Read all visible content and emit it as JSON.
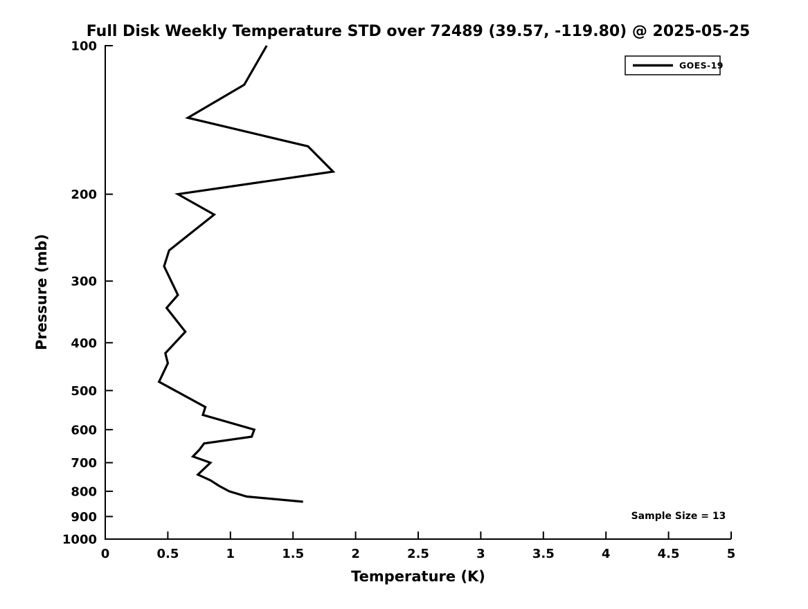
{
  "figure": {
    "background_color": "#ffffff",
    "text_color": "#000000",
    "line_color": "#000000"
  },
  "chart_data": {
    "type": "line",
    "title": "Full Disk Weekly Temperature STD over 72489 (39.57, -119.80) @ 2025-05-25",
    "xlabel": "Temperature (K)",
    "ylabel": "Pressure (mb)",
    "xlim": [
      0,
      5
    ],
    "ylim": [
      100,
      1000
    ],
    "xscale": "linear",
    "yscale": "log",
    "y_axis_inverted_downward": true,
    "grid": false,
    "xticks": [
      0,
      0.5,
      1,
      1.5,
      2,
      2.5,
      3,
      3.5,
      4,
      4.5,
      5
    ],
    "yticks": [
      100,
      200,
      300,
      400,
      500,
      600,
      700,
      800,
      900,
      1000
    ],
    "legend": {
      "position": "upper right",
      "entries": [
        {
          "label": "GOES-19",
          "color": "#000000",
          "style": "solid"
        }
      ]
    },
    "annotations": [
      {
        "text": "Sample Size = 13",
        "position": "lower right"
      }
    ],
    "series": [
      {
        "name": "GOES-19",
        "pressure_mb": [
          100,
          120,
          140,
          160,
          180,
          200,
          220,
          260,
          280,
          320,
          340,
          380,
          420,
          440,
          480,
          540,
          560,
          600,
          620,
          640,
          660,
          680,
          700,
          740,
          760,
          780,
          800,
          820,
          840
        ],
        "temperature_std_K": [
          1.29,
          1.11,
          0.66,
          1.62,
          1.82,
          0.58,
          0.87,
          0.51,
          0.47,
          0.58,
          0.49,
          0.64,
          0.48,
          0.5,
          0.43,
          0.8,
          0.78,
          1.19,
          1.17,
          0.79,
          0.75,
          0.7,
          0.84,
          0.74,
          0.84,
          0.91,
          0.99,
          1.13,
          1.58
        ]
      }
    ]
  }
}
